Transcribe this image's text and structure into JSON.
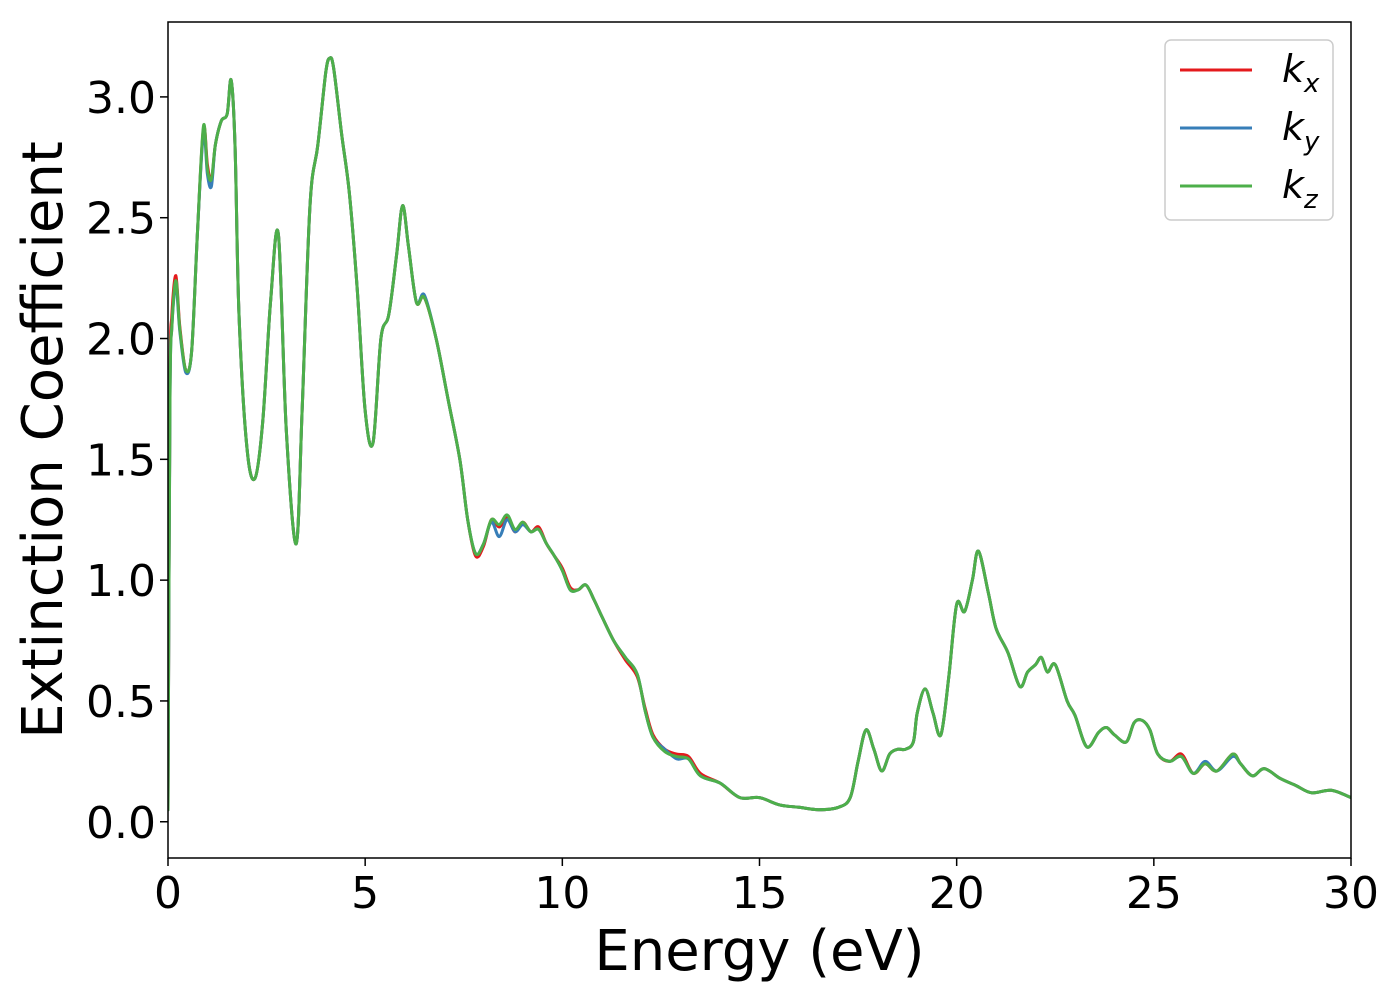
{
  "chart_data": {
    "type": "line",
    "title": "",
    "xlabel": "Energy (eV)",
    "ylabel": "Extinction Coefficient",
    "xlim": [
      0,
      30
    ],
    "ylim": [
      -0.15,
      3.31
    ],
    "xticks": [
      0,
      5,
      10,
      15,
      20,
      25,
      30
    ],
    "xtick_labels": [
      "0",
      "5",
      "10",
      "15",
      "20",
      "25",
      "30"
    ],
    "yticks": [
      0.0,
      0.5,
      1.0,
      1.5,
      2.0,
      2.5,
      3.0
    ],
    "ytick_labels": [
      "0.0",
      "0.5",
      "1.0",
      "1.5",
      "2.0",
      "2.5",
      "3.0"
    ],
    "grid": false,
    "legend_position": "top-right",
    "x": [
      0,
      0.05,
      0.1,
      0.2,
      0.3,
      0.45,
      0.6,
      0.75,
      0.9,
      1.0,
      1.1,
      1.2,
      1.35,
      1.5,
      1.6,
      1.7,
      1.8,
      2.0,
      2.2,
      2.4,
      2.6,
      2.8,
      3.0,
      3.25,
      3.4,
      3.6,
      3.8,
      4.0,
      4.1,
      4.2,
      4.4,
      4.6,
      4.8,
      5.0,
      5.2,
      5.4,
      5.6,
      5.8,
      5.95,
      6.1,
      6.3,
      6.5,
      6.8,
      7.1,
      7.4,
      7.6,
      7.8,
      8.0,
      8.2,
      8.4,
      8.6,
      8.8,
      9.0,
      9.2,
      9.4,
      9.6,
      9.8,
      10.0,
      10.2,
      10.4,
      10.6,
      10.8,
      11.0,
      11.3,
      11.6,
      11.9,
      12.1,
      12.3,
      12.6,
      12.9,
      13.2,
      13.5,
      14.0,
      14.5,
      15.0,
      15.5,
      16.0,
      16.5,
      17.0,
      17.3,
      17.5,
      17.7,
      17.9,
      18.1,
      18.3,
      18.5,
      18.7,
      18.9,
      19.0,
      19.2,
      19.4,
      19.6,
      19.8,
      20.0,
      20.2,
      20.4,
      20.55,
      20.8,
      21.0,
      21.3,
      21.6,
      21.8,
      22.0,
      22.15,
      22.3,
      22.5,
      22.8,
      23.0,
      23.3,
      23.6,
      23.8,
      24.0,
      24.3,
      24.5,
      24.7,
      24.9,
      25.1,
      25.4,
      25.7,
      26.0,
      26.3,
      26.6,
      27.0,
      27.2,
      27.5,
      27.8,
      28.2,
      28.6,
      29.0,
      29.5,
      30.0
    ],
    "series": [
      {
        "name": "k",
        "sub": "x",
        "color": "#e41a1c",
        "values": [
          0.05,
          1.8,
          2.1,
          2.26,
          2.05,
          1.87,
          1.95,
          2.45,
          2.87,
          2.72,
          2.65,
          2.8,
          2.9,
          2.93,
          3.07,
          2.8,
          2.1,
          1.55,
          1.42,
          1.65,
          2.15,
          2.43,
          1.62,
          1.15,
          1.7,
          2.55,
          2.8,
          3.1,
          3.16,
          3.12,
          2.85,
          2.6,
          2.2,
          1.7,
          1.57,
          2.0,
          2.1,
          2.35,
          2.55,
          2.38,
          2.15,
          2.17,
          2.0,
          1.75,
          1.5,
          1.25,
          1.1,
          1.14,
          1.25,
          1.22,
          1.26,
          1.2,
          1.24,
          1.2,
          1.22,
          1.15,
          1.1,
          1.05,
          0.97,
          0.96,
          0.98,
          0.92,
          0.85,
          0.75,
          0.67,
          0.6,
          0.47,
          0.36,
          0.3,
          0.28,
          0.27,
          0.2,
          0.16,
          0.1,
          0.1,
          0.07,
          0.06,
          0.05,
          0.06,
          0.1,
          0.25,
          0.38,
          0.3,
          0.21,
          0.28,
          0.3,
          0.3,
          0.33,
          0.45,
          0.55,
          0.45,
          0.36,
          0.6,
          0.9,
          0.87,
          1.0,
          1.12,
          0.95,
          0.8,
          0.7,
          0.56,
          0.62,
          0.65,
          0.68,
          0.62,
          0.65,
          0.5,
          0.44,
          0.31,
          0.37,
          0.39,
          0.36,
          0.33,
          0.41,
          0.42,
          0.38,
          0.28,
          0.25,
          0.28,
          0.2,
          0.24,
          0.21,
          0.28,
          0.24,
          0.19,
          0.22,
          0.18,
          0.15,
          0.12,
          0.13,
          0.1
        ]
      },
      {
        "name": "k",
        "sub": "y",
        "color": "#377eb8",
        "values": [
          0.05,
          1.75,
          2.05,
          2.22,
          2.03,
          1.86,
          1.95,
          2.45,
          2.85,
          2.68,
          2.63,
          2.8,
          2.9,
          2.93,
          3.07,
          2.8,
          2.1,
          1.55,
          1.42,
          1.65,
          2.15,
          2.43,
          1.62,
          1.15,
          1.7,
          2.55,
          2.8,
          3.1,
          3.16,
          3.12,
          2.85,
          2.6,
          2.2,
          1.7,
          1.57,
          2.0,
          2.1,
          2.35,
          2.55,
          2.38,
          2.15,
          2.18,
          2.0,
          1.75,
          1.5,
          1.25,
          1.11,
          1.15,
          1.24,
          1.18,
          1.25,
          1.2,
          1.23,
          1.2,
          1.21,
          1.15,
          1.1,
          1.04,
          0.96,
          0.96,
          0.98,
          0.92,
          0.85,
          0.75,
          0.68,
          0.61,
          0.46,
          0.35,
          0.3,
          0.26,
          0.26,
          0.19,
          0.16,
          0.1,
          0.1,
          0.07,
          0.06,
          0.05,
          0.06,
          0.1,
          0.25,
          0.38,
          0.3,
          0.21,
          0.28,
          0.3,
          0.3,
          0.33,
          0.45,
          0.55,
          0.45,
          0.36,
          0.6,
          0.9,
          0.87,
          1.0,
          1.12,
          0.95,
          0.8,
          0.7,
          0.56,
          0.62,
          0.65,
          0.68,
          0.62,
          0.65,
          0.5,
          0.44,
          0.31,
          0.37,
          0.39,
          0.36,
          0.33,
          0.41,
          0.42,
          0.38,
          0.28,
          0.25,
          0.27,
          0.2,
          0.25,
          0.21,
          0.27,
          0.24,
          0.19,
          0.22,
          0.18,
          0.15,
          0.12,
          0.13,
          0.1
        ]
      },
      {
        "name": "k",
        "sub": "z",
        "color": "#4daf4a",
        "values": [
          0.05,
          1.75,
          2.05,
          2.24,
          2.04,
          1.87,
          1.95,
          2.45,
          2.88,
          2.7,
          2.66,
          2.8,
          2.9,
          2.93,
          3.07,
          2.8,
          2.1,
          1.55,
          1.42,
          1.65,
          2.15,
          2.43,
          1.62,
          1.15,
          1.7,
          2.55,
          2.8,
          3.1,
          3.16,
          3.12,
          2.85,
          2.6,
          2.2,
          1.7,
          1.57,
          2.0,
          2.1,
          2.35,
          2.55,
          2.38,
          2.15,
          2.17,
          2.0,
          1.75,
          1.5,
          1.25,
          1.11,
          1.15,
          1.25,
          1.23,
          1.27,
          1.21,
          1.24,
          1.2,
          1.21,
          1.15,
          1.1,
          1.04,
          0.96,
          0.96,
          0.98,
          0.92,
          0.85,
          0.75,
          0.68,
          0.61,
          0.46,
          0.35,
          0.29,
          0.27,
          0.26,
          0.19,
          0.16,
          0.1,
          0.1,
          0.07,
          0.06,
          0.05,
          0.06,
          0.1,
          0.25,
          0.38,
          0.3,
          0.21,
          0.28,
          0.3,
          0.3,
          0.33,
          0.45,
          0.55,
          0.45,
          0.36,
          0.6,
          0.9,
          0.87,
          1.0,
          1.12,
          0.95,
          0.8,
          0.7,
          0.56,
          0.62,
          0.65,
          0.68,
          0.62,
          0.65,
          0.5,
          0.44,
          0.31,
          0.37,
          0.39,
          0.36,
          0.33,
          0.41,
          0.42,
          0.38,
          0.28,
          0.25,
          0.27,
          0.2,
          0.24,
          0.21,
          0.28,
          0.24,
          0.19,
          0.22,
          0.18,
          0.15,
          0.12,
          0.13,
          0.1
        ]
      }
    ]
  }
}
